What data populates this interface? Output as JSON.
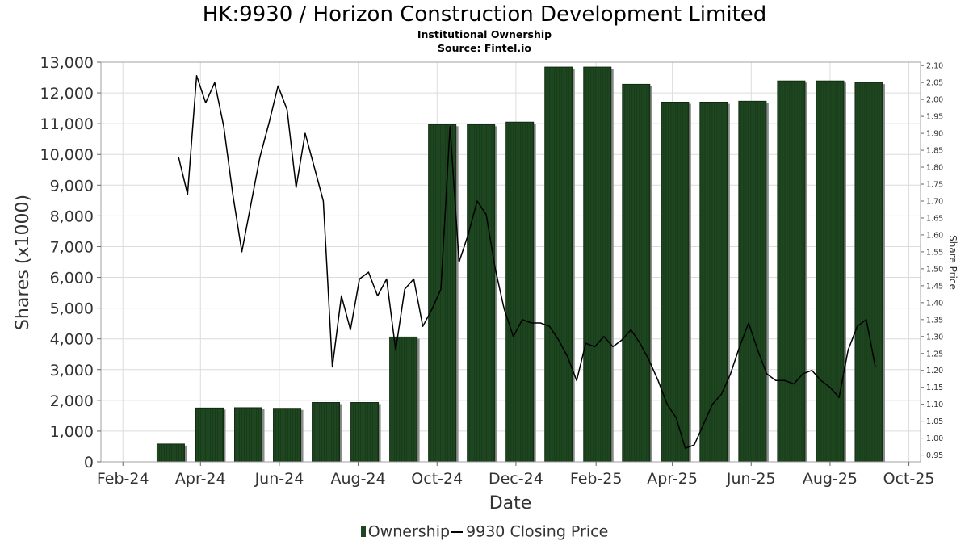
{
  "header": {
    "title": "HK:9930 / Horizon Construction Development Limited",
    "subtitle": "Institutional Ownership",
    "source": "Source: Fintel.io"
  },
  "chart_data": {
    "type": "bar",
    "xlabel": "Date",
    "ylabel": "Shares (x1000)",
    "y2label": "Share Price",
    "x_tick_labels": [
      "Feb-24",
      "Apr-24",
      "Jun-24",
      "Aug-24",
      "Oct-24",
      "Dec-24",
      "Feb-25",
      "Apr-25",
      "Jun-25",
      "Aug-25",
      "Oct-25"
    ],
    "x_range": [
      "2024-01-15",
      "2025-10-10"
    ],
    "ylim": [
      0,
      13000
    ],
    "yticks": [
      0,
      1000,
      2000,
      3000,
      4000,
      5000,
      6000,
      7000,
      8000,
      9000,
      10000,
      11000,
      12000,
      13000
    ],
    "y2lim": [
      0.93,
      2.11
    ],
    "y2ticks": [
      0.95,
      1.0,
      1.05,
      1.1,
      1.15,
      1.2,
      1.25,
      1.3,
      1.35,
      1.4,
      1.45,
      1.5,
      1.55,
      1.6,
      1.65,
      1.7,
      1.75,
      1.8,
      1.85,
      1.9,
      1.95,
      2.0,
      2.05,
      2.1
    ],
    "grid": true,
    "colors": {
      "bar": "#1e4620",
      "bar_shadow": "#8c8c8c",
      "line": "#000000",
      "grid": "#dcdcdc"
    },
    "series": [
      {
        "name": "Ownership",
        "kind": "bar",
        "x": [
          "2024-03-09",
          "2024-04-08",
          "2024-05-08",
          "2024-06-07",
          "2024-07-07",
          "2024-08-06",
          "2024-09-05",
          "2024-10-05",
          "2024-11-04",
          "2024-12-04",
          "2025-01-03",
          "2025-02-02",
          "2025-03-04",
          "2025-04-03",
          "2025-05-03",
          "2025-06-02",
          "2025-07-02",
          "2025-08-01",
          "2025-08-31"
        ],
        "values": [
          580,
          1750,
          1760,
          1740,
          1930,
          1930,
          4060,
          10970,
          10970,
          11050,
          12840,
          12840,
          12280,
          11700,
          11700,
          11730,
          12390,
          12390,
          12340
        ]
      },
      {
        "name": "9930 Closing Price",
        "kind": "line",
        "axis": "right",
        "x": [
          "2024-03-15",
          "2024-03-22",
          "2024-03-29",
          "2024-04-05",
          "2024-04-12",
          "2024-04-19",
          "2024-04-26",
          "2024-05-03",
          "2024-05-10",
          "2024-05-17",
          "2024-05-24",
          "2024-05-31",
          "2024-06-07",
          "2024-06-14",
          "2024-06-21",
          "2024-06-28",
          "2024-07-05",
          "2024-07-12",
          "2024-07-19",
          "2024-07-26",
          "2024-08-02",
          "2024-08-09",
          "2024-08-16",
          "2024-08-23",
          "2024-08-30",
          "2024-09-06",
          "2024-09-13",
          "2024-09-20",
          "2024-09-27",
          "2024-10-04",
          "2024-10-11",
          "2024-10-18",
          "2024-10-25",
          "2024-11-01",
          "2024-11-08",
          "2024-11-15",
          "2024-11-22",
          "2024-11-29",
          "2024-12-06",
          "2024-12-13",
          "2024-12-20",
          "2024-12-27",
          "2025-01-03",
          "2025-01-10",
          "2025-01-17",
          "2025-01-24",
          "2025-01-31",
          "2025-02-07",
          "2025-02-14",
          "2025-02-21",
          "2025-02-28",
          "2025-03-07",
          "2025-03-14",
          "2025-03-21",
          "2025-03-28",
          "2025-04-04",
          "2025-04-11",
          "2025-04-18",
          "2025-04-25",
          "2025-05-02",
          "2025-05-09",
          "2025-05-16",
          "2025-05-23",
          "2025-05-30",
          "2025-06-06",
          "2025-06-13",
          "2025-06-20",
          "2025-06-27",
          "2025-07-04",
          "2025-07-11",
          "2025-07-18",
          "2025-07-25",
          "2025-08-01",
          "2025-08-08",
          "2025-08-15",
          "2025-08-22",
          "2025-08-29",
          "2025-09-05"
        ],
        "values": [
          1.83,
          1.72,
          2.07,
          1.99,
          2.05,
          1.92,
          1.72,
          1.55,
          1.69,
          1.83,
          1.93,
          2.04,
          1.97,
          1.74,
          1.9,
          1.8,
          1.7,
          1.21,
          1.42,
          1.32,
          1.47,
          1.49,
          1.42,
          1.47,
          1.26,
          1.44,
          1.47,
          1.33,
          1.38,
          1.44,
          1.92,
          1.52,
          1.6,
          1.7,
          1.66,
          1.5,
          1.38,
          1.3,
          1.35,
          1.34,
          1.34,
          1.33,
          1.29,
          1.24,
          1.17,
          1.28,
          1.27,
          1.3,
          1.27,
          1.29,
          1.32,
          1.28,
          1.23,
          1.17,
          1.1,
          1.06,
          0.97,
          0.98,
          1.04,
          1.1,
          1.13,
          1.19,
          1.27,
          1.34,
          1.26,
          1.19,
          1.17,
          1.17,
          1.16,
          1.19,
          1.2,
          1.17,
          1.15,
          1.12,
          1.26,
          1.33,
          1.35,
          1.21
        ]
      }
    ],
    "legend_position": "bottom-center"
  }
}
